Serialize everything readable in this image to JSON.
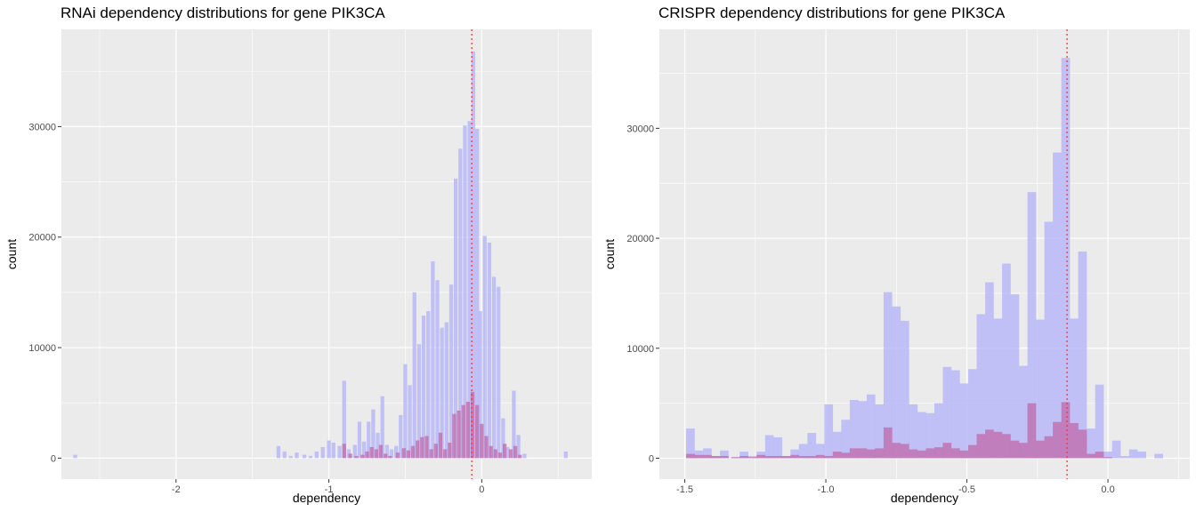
{
  "chart_data": [
    {
      "type": "histogram",
      "title": "RNAi dependency distributions for gene PIK3CA",
      "xlabel": "dependency",
      "ylabel": "count",
      "xlim": [
        -2.75,
        0.72
      ],
      "ylim": [
        -1900,
        38800
      ],
      "x_ticks": [
        -2,
        -1,
        0
      ],
      "x_tick_labels": [
        "-2",
        "-1",
        "0"
      ],
      "y_ticks": [
        0,
        10000,
        20000,
        30000
      ],
      "y_tick_labels": [
        "0",
        "10000",
        "20000",
        "30000"
      ],
      "bin_width": 0.025,
      "vline": {
        "x": -0.065,
        "color": "#ff3333",
        "style": "dotted"
      },
      "grid": true,
      "colors": {
        "panel": "#ebebeb",
        "grid": "#ffffff",
        "blue": "#a8a8f5",
        "red": "#c06aa8"
      },
      "series": [
        {
          "color": "#b8b8f8",
          "bins": [
            [
              -2.66,
              300
            ],
            [
              -1.33,
              1100
            ],
            [
              -1.29,
              600
            ],
            [
              -1.25,
              200
            ],
            [
              -1.21,
              500
            ],
            [
              -1.16,
              300
            ],
            [
              -1.12,
              200
            ],
            [
              -1.08,
              600
            ],
            [
              -1.04,
              1000
            ],
            [
              -1.0,
              1600
            ],
            [
              -0.97,
              1400
            ],
            [
              -0.93,
              1100
            ],
            [
              -0.9,
              7000
            ],
            [
              -0.87,
              800
            ],
            [
              -0.83,
              1200
            ],
            [
              -0.8,
              3300
            ],
            [
              -0.77,
              1500
            ],
            [
              -0.74,
              3300
            ],
            [
              -0.71,
              4400
            ],
            [
              -0.68,
              2300
            ],
            [
              -0.65,
              5600
            ],
            [
              -0.62,
              1200
            ],
            [
              -0.59,
              800
            ],
            [
              -0.56,
              1100
            ],
            [
              -0.53,
              3900
            ],
            [
              -0.5,
              8500
            ],
            [
              -0.47,
              6600
            ],
            [
              -0.44,
              15000
            ],
            [
              -0.41,
              10300
            ],
            [
              -0.38,
              12900
            ],
            [
              -0.35,
              13300
            ],
            [
              -0.32,
              17800
            ],
            [
              -0.29,
              16100
            ],
            [
              -0.26,
              11800
            ],
            [
              -0.23,
              12300
            ],
            [
              -0.2,
              15700
            ],
            [
              -0.17,
              25300
            ],
            [
              -0.14,
              28000
            ],
            [
              -0.11,
              30100
            ],
            [
              -0.08,
              30500
            ],
            [
              -0.055,
              36800
            ],
            [
              -0.03,
              29800
            ],
            [
              -0.01,
              13300
            ],
            [
              0.02,
              20100
            ],
            [
              0.05,
              19500
            ],
            [
              0.08,
              16400
            ],
            [
              0.11,
              15500
            ],
            [
              0.14,
              3600
            ],
            [
              0.17,
              1000
            ],
            [
              0.21,
              6100
            ],
            [
              0.24,
              2100
            ],
            [
              0.28,
              400
            ],
            [
              0.55,
              600
            ]
          ]
        },
        {
          "color": "#c06aa8",
          "bins": [
            [
              -0.9,
              1300
            ],
            [
              -0.86,
              400
            ],
            [
              -0.82,
              200
            ],
            [
              -0.78,
              300
            ],
            [
              -0.75,
              600
            ],
            [
              -0.72,
              1000
            ],
            [
              -0.69,
              800
            ],
            [
              -0.66,
              1200
            ],
            [
              -0.63,
              400
            ],
            [
              -0.6,
              200
            ],
            [
              -0.55,
              500
            ],
            [
              -0.51,
              900
            ],
            [
              -0.48,
              700
            ],
            [
              -0.45,
              1100
            ],
            [
              -0.42,
              1600
            ],
            [
              -0.39,
              1900
            ],
            [
              -0.36,
              2000
            ],
            [
              -0.33,
              800
            ],
            [
              -0.3,
              1300
            ],
            [
              -0.27,
              2300
            ],
            [
              -0.24,
              800
            ],
            [
              -0.21,
              1400
            ],
            [
              -0.18,
              4000
            ],
            [
              -0.15,
              4300
            ],
            [
              -0.12,
              4800
            ],
            [
              -0.09,
              5100
            ],
            [
              -0.06,
              6000
            ],
            [
              -0.03,
              4800
            ],
            [
              0.0,
              3100
            ],
            [
              0.03,
              2000
            ],
            [
              0.06,
              1100
            ],
            [
              0.09,
              800
            ],
            [
              0.12,
              500
            ],
            [
              0.15,
              1300
            ],
            [
              0.19,
              800
            ],
            [
              0.22,
              1100
            ],
            [
              0.25,
              300
            ]
          ]
        }
      ]
    },
    {
      "type": "histogram",
      "title": "CRISPR dependency distributions for gene PIK3CA",
      "xlabel": "dependency",
      "ylabel": "count",
      "xlim": [
        -1.59,
        0.29
      ],
      "ylim": [
        -1900,
        39000
      ],
      "x_ticks": [
        -1.5,
        -1.0,
        -0.5,
        0.0
      ],
      "x_tick_labels": [
        "-1.5",
        "-1.0",
        "-0.5",
        "0.0"
      ],
      "y_ticks": [
        0,
        10000,
        20000,
        30000
      ],
      "y_tick_labels": [
        "0",
        "10000",
        "20000",
        "30000"
      ],
      "bin_width": 0.0307,
      "vline": {
        "x": -0.145,
        "color": "#ff3333",
        "style": "dotted"
      },
      "grid": true,
      "colors": {
        "panel": "#ebebeb",
        "grid": "#ffffff",
        "blue": "#a8a8f5",
        "red": "#c06aa8"
      },
      "series": [
        {
          "color": "#b8b8f8",
          "bins": [
            [
              -1.48,
              2700
            ],
            [
              -1.45,
              700
            ],
            [
              -1.42,
              900
            ],
            [
              -1.39,
              200
            ],
            [
              -1.36,
              700
            ],
            [
              -1.32,
              100
            ],
            [
              -1.29,
              600
            ],
            [
              -1.26,
              200
            ],
            [
              -1.23,
              600
            ],
            [
              -1.2,
              2100
            ],
            [
              -1.17,
              1900
            ],
            [
              -1.14,
              200
            ],
            [
              -1.11,
              800
            ],
            [
              -1.08,
              1300
            ],
            [
              -1.05,
              2300
            ],
            [
              -1.02,
              1300
            ],
            [
              -0.99,
              4900
            ],
            [
              -0.96,
              2400
            ],
            [
              -0.93,
              3500
            ],
            [
              -0.9,
              5300
            ],
            [
              -0.87,
              5200
            ],
            [
              -0.84,
              5800
            ],
            [
              -0.81,
              4900
            ],
            [
              -0.78,
              15100
            ],
            [
              -0.75,
              13800
            ],
            [
              -0.72,
              12500
            ],
            [
              -0.69,
              4900
            ],
            [
              -0.66,
              4200
            ],
            [
              -0.63,
              4100
            ],
            [
              -0.6,
              5000
            ],
            [
              -0.57,
              8300
            ],
            [
              -0.54,
              8000
            ],
            [
              -0.51,
              6800
            ],
            [
              -0.48,
              8100
            ],
            [
              -0.45,
              13100
            ],
            [
              -0.42,
              16000
            ],
            [
              -0.39,
              12700
            ],
            [
              -0.36,
              17700
            ],
            [
              -0.33,
              14900
            ],
            [
              -0.3,
              8400
            ],
            [
              -0.27,
              24200
            ],
            [
              -0.24,
              12600
            ],
            [
              -0.21,
              21500
            ],
            [
              -0.18,
              27800
            ],
            [
              -0.15,
              36400
            ],
            [
              -0.12,
              12700
            ],
            [
              -0.09,
              18800
            ],
            [
              -0.06,
              2700
            ],
            [
              -0.03,
              6700
            ],
            [
              0.0,
              600
            ],
            [
              0.03,
              1600
            ],
            [
              0.06,
              200
            ],
            [
              0.09,
              800
            ],
            [
              0.12,
              600
            ],
            [
              0.18,
              400
            ]
          ]
        },
        {
          "color": "#c06aa8",
          "bins": [
            [
              -1.48,
              400
            ],
            [
              -1.45,
              300
            ],
            [
              -1.42,
              300
            ],
            [
              -1.39,
              200
            ],
            [
              -1.36,
              200
            ],
            [
              -1.32,
              100
            ],
            [
              -1.29,
              200
            ],
            [
              -1.26,
              100
            ],
            [
              -1.23,
              300
            ],
            [
              -1.2,
              200
            ],
            [
              -1.17,
              200
            ],
            [
              -1.14,
              200
            ],
            [
              -1.11,
              300
            ],
            [
              -1.08,
              200
            ],
            [
              -1.05,
              200
            ],
            [
              -1.02,
              300
            ],
            [
              -0.99,
              200
            ],
            [
              -0.96,
              600
            ],
            [
              -0.93,
              500
            ],
            [
              -0.9,
              900
            ],
            [
              -0.87,
              900
            ],
            [
              -0.84,
              800
            ],
            [
              -0.81,
              900
            ],
            [
              -0.78,
              2800
            ],
            [
              -0.75,
              1400
            ],
            [
              -0.72,
              1300
            ],
            [
              -0.69,
              800
            ],
            [
              -0.66,
              700
            ],
            [
              -0.63,
              900
            ],
            [
              -0.6,
              1000
            ],
            [
              -0.57,
              1400
            ],
            [
              -0.54,
              900
            ],
            [
              -0.51,
              700
            ],
            [
              -0.48,
              1200
            ],
            [
              -0.45,
              2200
            ],
            [
              -0.42,
              2600
            ],
            [
              -0.39,
              2400
            ],
            [
              -0.36,
              2200
            ],
            [
              -0.33,
              1600
            ],
            [
              -0.3,
              1400
            ],
            [
              -0.27,
              5000
            ],
            [
              -0.24,
              1600
            ],
            [
              -0.21,
              2000
            ],
            [
              -0.18,
              3300
            ],
            [
              -0.15,
              5100
            ],
            [
              -0.12,
              3200
            ],
            [
              -0.09,
              2600
            ],
            [
              -0.06,
              400
            ],
            [
              -0.03,
              600
            ],
            [
              0.0,
              100
            ]
          ]
        }
      ]
    }
  ]
}
